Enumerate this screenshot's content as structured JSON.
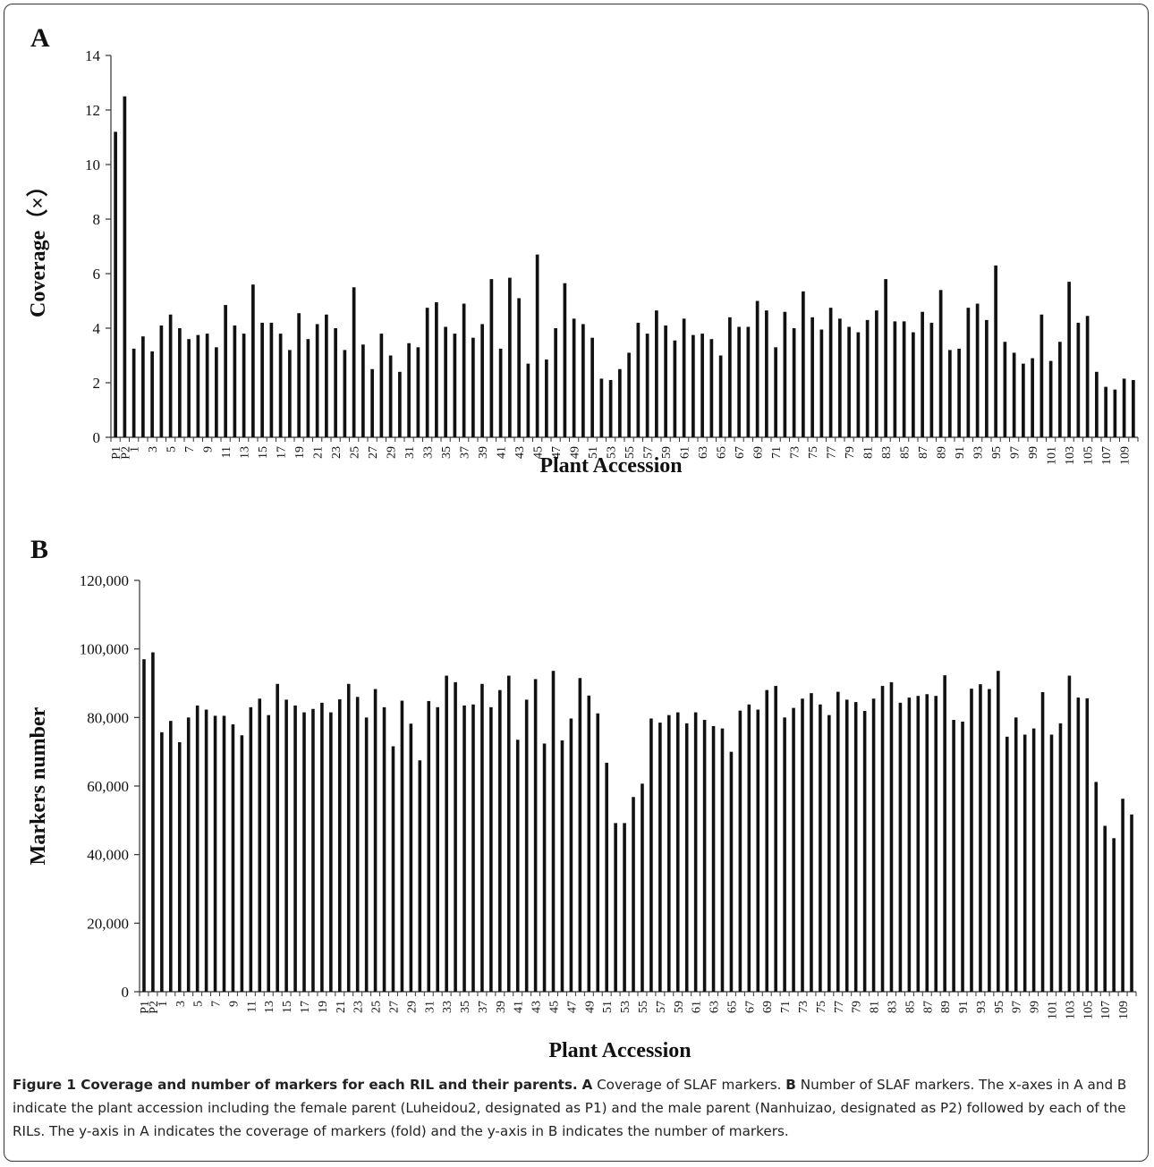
{
  "figure": {
    "panel_a_label": "A",
    "panel_b_label": "B",
    "caption_title": "Figure 1 Coverage and number of markers for each RIL and their parents.",
    "caption_a_letter": "A",
    "caption_a_text": " Coverage of SLAF markers. ",
    "caption_b_letter": "B",
    "caption_b_text": " Number of SLAF markers. The x-axes in A and B indicate the plant accession including the female parent (Luheidou2, designated as P1) and the male parent (Nanhuizao, designated as P2) followed by each of the RILs. The y-axis in A indicates the coverage of markers (fold) and the y-axis in B indicates the number of markers."
  },
  "colors": {
    "bar": "#111111",
    "axis": "#333333"
  },
  "chart_data": [
    {
      "type": "bar",
      "panel": "A",
      "title": "",
      "xlabel": "Plant Accession",
      "ylabel": "Coverage（×）",
      "ylim": [
        0,
        14
      ],
      "yticks": [
        0,
        2,
        4,
        6,
        8,
        10,
        12,
        14
      ],
      "ytick_labels": [
        "0",
        "2",
        "4",
        "6",
        "8",
        "10",
        "12",
        "14"
      ],
      "categories": [
        "P1",
        "P2",
        "1",
        "2",
        "3",
        "4",
        "5",
        "6",
        "7",
        "8",
        "9",
        "10",
        "11",
        "12",
        "13",
        "14",
        "15",
        "16",
        "17",
        "18",
        "19",
        "20",
        "21",
        "22",
        "23",
        "24",
        "25",
        "26",
        "27",
        "28",
        "29",
        "30",
        "31",
        "32",
        "33",
        "34",
        "35",
        "36",
        "37",
        "38",
        "39",
        "40",
        "41",
        "42",
        "43",
        "44",
        "45",
        "46",
        "47",
        "48",
        "49",
        "50",
        "51",
        "52",
        "53",
        "54",
        "55",
        "56",
        "57",
        "58",
        "59",
        "60",
        "61",
        "62",
        "63",
        "64",
        "65",
        "66",
        "67",
        "68",
        "69",
        "70",
        "71",
        "72",
        "73",
        "74",
        "75",
        "76",
        "77",
        "78",
        "79",
        "80",
        "81",
        "82",
        "83",
        "84",
        "85",
        "86",
        "87",
        "88",
        "89",
        "90",
        "91",
        "92",
        "93",
        "94",
        "95",
        "96",
        "97",
        "98",
        "99",
        "100",
        "101",
        "102",
        "103",
        "104",
        "105",
        "106",
        "107",
        "108",
        "109",
        "110"
      ],
      "shown_tick_labels": [
        "P1",
        "P2",
        "1",
        "3",
        "5",
        "7",
        "9",
        "11",
        "13",
        "15",
        "17",
        "19",
        "21",
        "23",
        "25",
        "27",
        "29",
        "31",
        "33",
        "35",
        "37",
        "39",
        "41",
        "43",
        "45",
        "47",
        "49",
        "51",
        "53",
        "55",
        "57",
        "59",
        "61",
        "63",
        "65",
        "67",
        "69",
        "71",
        "73",
        "75",
        "77",
        "79",
        "81",
        "83",
        "85",
        "87",
        "89",
        "91",
        "93",
        "95",
        "97",
        "99",
        "101",
        "103",
        "105",
        "107",
        "109"
      ],
      "values": [
        11.2,
        12.5,
        3.25,
        3.7,
        3.15,
        4.1,
        4.5,
        4.0,
        3.6,
        3.75,
        3.8,
        3.3,
        4.85,
        4.1,
        3.8,
        5.6,
        4.2,
        4.2,
        3.8,
        3.2,
        4.55,
        3.6,
        4.15,
        4.5,
        4.0,
        3.2,
        5.5,
        3.4,
        2.5,
        3.8,
        3.0,
        2.4,
        3.45,
        3.3,
        4.75,
        4.95,
        4.05,
        3.8,
        4.9,
        3.65,
        4.15,
        5.8,
        3.25,
        5.85,
        5.1,
        2.7,
        6.7,
        2.85,
        4.0,
        5.65,
        4.35,
        4.15,
        3.65,
        2.15,
        2.1,
        2.5,
        3.1,
        4.2,
        3.8,
        4.65,
        4.1,
        3.55,
        4.35,
        3.75,
        3.8,
        3.6,
        3.0,
        4.4,
        4.05,
        4.05,
        5.0,
        4.65,
        3.3,
        4.6,
        4.0,
        5.35,
        4.4,
        3.95,
        4.75,
        4.35,
        4.05,
        3.85,
        4.3,
        4.65,
        5.8,
        4.25,
        4.25,
        3.85,
        4.6,
        4.2,
        5.4,
        3.2,
        3.25,
        4.75,
        4.9,
        4.3,
        6.3,
        3.5,
        3.1,
        2.7,
        2.9,
        4.5,
        2.8,
        3.5,
        5.7,
        4.2,
        4.45,
        2.4,
        1.85,
        1.75,
        2.15,
        2.1
      ]
    },
    {
      "type": "bar",
      "panel": "B",
      "title": "",
      "xlabel": "Plant Accession",
      "ylabel": "Markers number",
      "ylim": [
        0,
        120000
      ],
      "yticks": [
        0,
        20000,
        40000,
        60000,
        80000,
        100000,
        120000
      ],
      "ytick_labels": [
        "0",
        "20,000",
        "40,000",
        "60,000",
        "80,000",
        "100,000",
        "120,000"
      ],
      "categories": [
        "P1",
        "P2",
        "1",
        "2",
        "3",
        "4",
        "5",
        "6",
        "7",
        "8",
        "9",
        "10",
        "11",
        "12",
        "13",
        "14",
        "15",
        "16",
        "17",
        "18",
        "19",
        "20",
        "21",
        "22",
        "23",
        "24",
        "25",
        "26",
        "27",
        "28",
        "29",
        "30",
        "31",
        "32",
        "33",
        "34",
        "35",
        "36",
        "37",
        "38",
        "39",
        "40",
        "41",
        "42",
        "43",
        "44",
        "45",
        "46",
        "47",
        "48",
        "49",
        "50",
        "51",
        "52",
        "53",
        "54",
        "55",
        "56",
        "57",
        "58",
        "59",
        "60",
        "61",
        "62",
        "63",
        "64",
        "65",
        "66",
        "67",
        "68",
        "69",
        "70",
        "71",
        "72",
        "73",
        "74",
        "75",
        "76",
        "77",
        "78",
        "79",
        "80",
        "81",
        "82",
        "83",
        "84",
        "85",
        "86",
        "87",
        "88",
        "89",
        "90",
        "91",
        "92",
        "93",
        "94",
        "95",
        "96",
        "97",
        "98",
        "99",
        "100",
        "101",
        "102",
        "103",
        "104",
        "105",
        "106",
        "107",
        "108",
        "109",
        "110"
      ],
      "shown_tick_labels": [
        "P1",
        "P2",
        "1",
        "3",
        "5",
        "7",
        "9",
        "11",
        "13",
        "15",
        "17",
        "19",
        "21",
        "23",
        "25",
        "27",
        "29",
        "31",
        "33",
        "35",
        "37",
        "39",
        "41",
        "43",
        "45",
        "47",
        "49",
        "51",
        "53",
        "55",
        "57",
        "59",
        "61",
        "63",
        "65",
        "67",
        "69",
        "71",
        "73",
        "75",
        "77",
        "79",
        "81",
        "83",
        "85",
        "87",
        "89",
        "91",
        "93",
        "95",
        "97",
        "99",
        "101",
        "103",
        "105",
        "107",
        "109"
      ],
      "values": [
        97000,
        99000,
        75700,
        79000,
        72800,
        80000,
        83500,
        82300,
        80500,
        80500,
        78000,
        74800,
        83000,
        85500,
        80700,
        89800,
        85200,
        83500,
        81500,
        82500,
        84300,
        81500,
        85300,
        89800,
        86000,
        80000,
        88300,
        83000,
        71600,
        84900,
        78200,
        67500,
        84800,
        83000,
        92200,
        90300,
        83500,
        83800,
        89800,
        83000,
        88000,
        92200,
        73500,
        85200,
        91200,
        72400,
        93600,
        73300,
        79700,
        91500,
        86400,
        81200,
        66800,
        49200,
        49200,
        56800,
        60700,
        79700,
        78500,
        80700,
        81500,
        78300,
        81500,
        79300,
        77500,
        76800,
        70000,
        82000,
        83800,
        82300,
        88000,
        89200,
        80000,
        82800,
        85500,
        87100,
        83800,
        80700,
        87500,
        85200,
        84500,
        81900,
        85500,
        89200,
        90300,
        84300,
        85800,
        86300,
        86800,
        86300,
        92300,
        79300,
        78800,
        88400,
        89700,
        88300,
        93600,
        74400,
        80000,
        75000,
        76800,
        87400,
        75000,
        78300,
        92200,
        85800,
        85600,
        61200,
        48400,
        44800,
        56300,
        51700
      ]
    }
  ]
}
